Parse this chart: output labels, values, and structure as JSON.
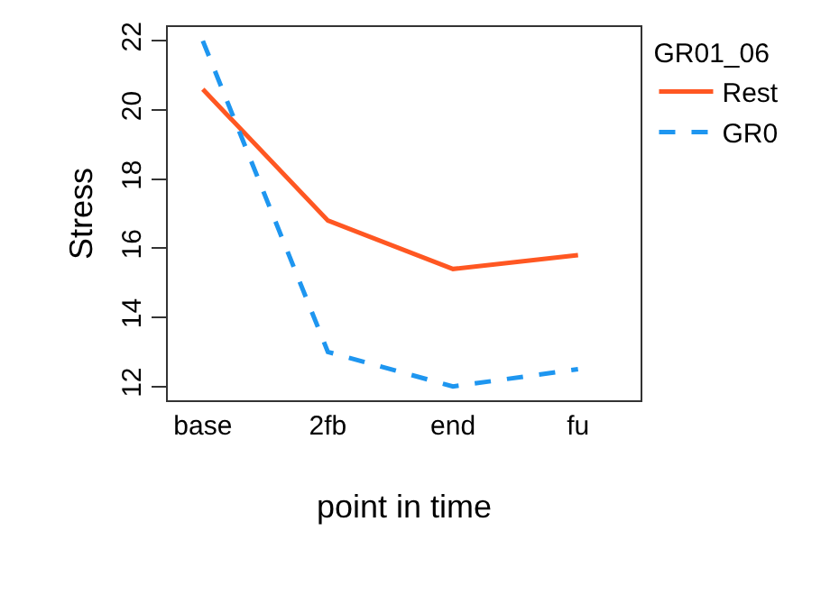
{
  "chart_data": {
    "type": "line",
    "xlabel": "point in time",
    "ylabel": "Stress",
    "legend_title": "GR01_06",
    "categories": [
      "base",
      "2fb",
      "end",
      "fu"
    ],
    "series": [
      {
        "name": "Rest",
        "color": "#ff5722",
        "line_style": "solid",
        "values": [
          20.6,
          16.8,
          15.4,
          15.8
        ]
      },
      {
        "name": "GR0",
        "color": "#1e96f0",
        "line_style": "dashed",
        "values": [
          22.0,
          13.0,
          12.0,
          12.5
        ]
      }
    ],
    "ylim": [
      11.6,
      22.4
    ],
    "yticks": [
      12,
      14,
      16,
      18,
      20,
      22
    ],
    "legend": "right",
    "marker": "none"
  }
}
